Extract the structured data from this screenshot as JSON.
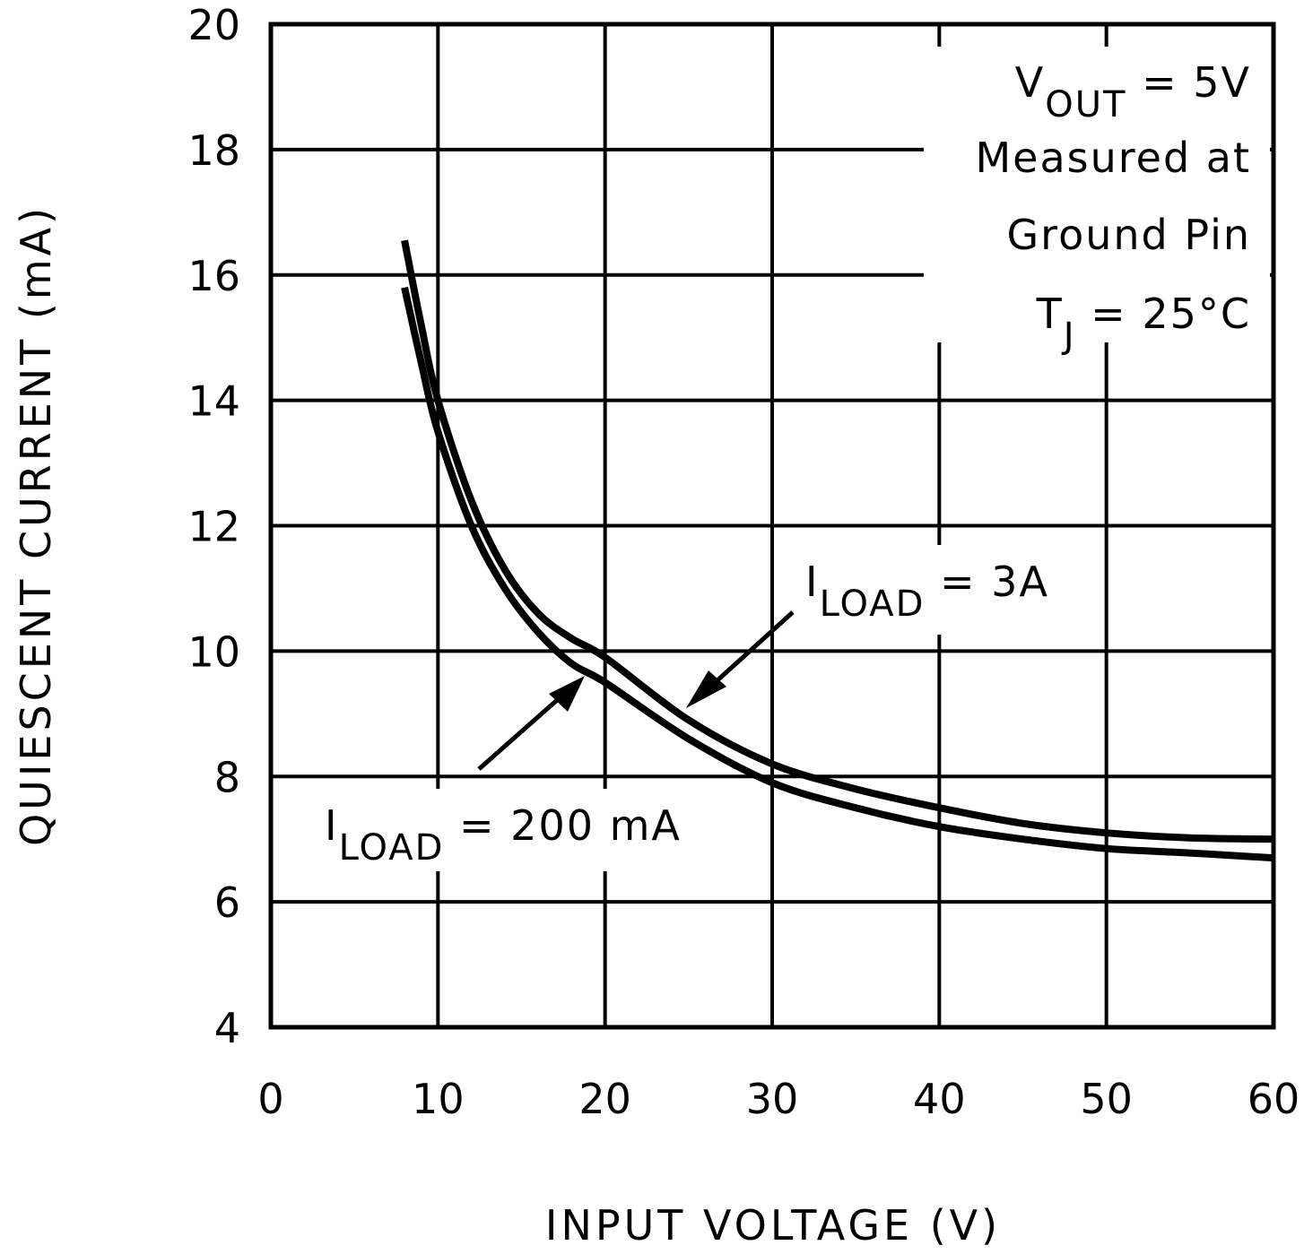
{
  "chart_data": {
    "type": "line",
    "title": "",
    "xlabel": "INPUT VOLTAGE (V)",
    "ylabel": "QUIESCENT CURRENT (mA)",
    "xlim": [
      0,
      60
    ],
    "ylim": [
      4,
      20
    ],
    "x_ticks": [
      0,
      10,
      20,
      30,
      40,
      50,
      60
    ],
    "y_ticks": [
      4,
      6,
      8,
      10,
      12,
      14,
      16,
      18,
      20
    ],
    "grid": true,
    "series": [
      {
        "name": "I_LOAD = 3A",
        "x": [
          8,
          9,
          10,
          12,
          14,
          16,
          18,
          20,
          25,
          30,
          35,
          40,
          45,
          50,
          55,
          60
        ],
        "y": [
          16.55,
          15.2,
          14.0,
          12.4,
          11.3,
          10.6,
          10.2,
          9.9,
          8.9,
          8.2,
          7.8,
          7.5,
          7.25,
          7.1,
          7.02,
          7.0
        ]
      },
      {
        "name": "I_LOAD = 200 mA",
        "x": [
          8,
          9,
          10,
          12,
          14,
          16,
          18,
          20,
          25,
          30,
          35,
          40,
          45,
          50,
          55,
          60
        ],
        "y": [
          15.8,
          14.6,
          13.5,
          12.0,
          11.0,
          10.3,
          9.8,
          9.5,
          8.6,
          7.9,
          7.5,
          7.2,
          7.0,
          6.85,
          6.78,
          6.7
        ]
      }
    ],
    "annotations": [
      {
        "text": "VOUT = 5V",
        "main": "V",
        "sub": "OUT",
        "rest": " = 5V"
      },
      {
        "text": "Measured at"
      },
      {
        "text": "Ground Pin"
      },
      {
        "text": "TJ = 25°C",
        "main": "T",
        "sub": "J",
        "rest": " = 25°C"
      },
      {
        "text": "ILOAD = 3A",
        "main": "I",
        "sub": "LOAD",
        "rest": " = 3A"
      },
      {
        "text": "ILOAD = 200 mA",
        "main": "I",
        "sub": "LOAD",
        "rest": " = 200 mA"
      }
    ]
  },
  "colors": {
    "line": "#000000",
    "background": "#ffffff"
  }
}
